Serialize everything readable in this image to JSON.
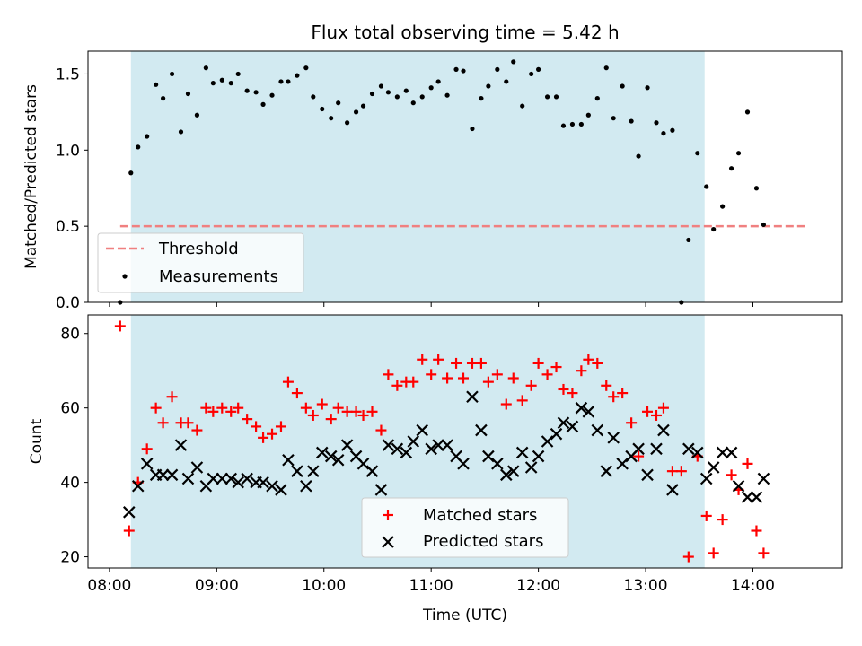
{
  "chart_data": [
    {
      "type": "scatter",
      "title": "Flux total observing time = 5.42 h",
      "xlabel": "",
      "ylabel": "Matched/Predicted stars",
      "ylim": [
        0,
        1.65
      ],
      "xlim": [
        "07:48",
        "14:50"
      ],
      "yticks": [
        0.0,
        0.5,
        1.0,
        1.5
      ],
      "ytick_labels": [
        "0.0",
        "0.5",
        "1.0",
        "1.5"
      ],
      "shaded_span": [
        "08:12",
        "13:33"
      ],
      "shade_color": "#add8e6",
      "threshold": {
        "name": "Threshold",
        "value": 0.5,
        "x_range": [
          "08:06",
          "14:30"
        ],
        "color": "#f08080"
      },
      "legend": {
        "placement": "lower-left",
        "entries": [
          "Threshold",
          "Measurements"
        ]
      },
      "series": [
        {
          "name": "Measurements",
          "marker": "dot",
          "color": "#000000",
          "points": [
            [
              "08:06",
              0.0
            ],
            [
              "08:12",
              0.85
            ],
            [
              "08:16",
              1.02
            ],
            [
              "08:21",
              1.09
            ],
            [
              "08:26",
              1.43
            ],
            [
              "08:30",
              1.34
            ],
            [
              "08:35",
              1.5
            ],
            [
              "08:40",
              1.12
            ],
            [
              "08:44",
              1.37
            ],
            [
              "08:49",
              1.23
            ],
            [
              "08:54",
              1.54
            ],
            [
              "08:58",
              1.44
            ],
            [
              "09:03",
              1.46
            ],
            [
              "09:08",
              1.44
            ],
            [
              "09:12",
              1.5
            ],
            [
              "09:17",
              1.39
            ],
            [
              "09:22",
              1.38
            ],
            [
              "09:26",
              1.3
            ],
            [
              "09:31",
              1.36
            ],
            [
              "09:36",
              1.45
            ],
            [
              "09:40",
              1.45
            ],
            [
              "09:45",
              1.49
            ],
            [
              "09:50",
              1.54
            ],
            [
              "09:54",
              1.35
            ],
            [
              "09:59",
              1.27
            ],
            [
              "10:04",
              1.21
            ],
            [
              "10:08",
              1.31
            ],
            [
              "10:13",
              1.18
            ],
            [
              "10:18",
              1.25
            ],
            [
              "10:22",
              1.29
            ],
            [
              "10:27",
              1.37
            ],
            [
              "10:32",
              1.42
            ],
            [
              "10:36",
              1.38
            ],
            [
              "10:41",
              1.35
            ],
            [
              "10:46",
              1.39
            ],
            [
              "10:50",
              1.31
            ],
            [
              "10:55",
              1.35
            ],
            [
              "11:00",
              1.41
            ],
            [
              "11:04",
              1.45
            ],
            [
              "11:09",
              1.36
            ],
            [
              "11:14",
              1.53
            ],
            [
              "11:18",
              1.52
            ],
            [
              "11:23",
              1.14
            ],
            [
              "11:28",
              1.34
            ],
            [
              "11:32",
              1.42
            ],
            [
              "11:37",
              1.53
            ],
            [
              "11:42",
              1.45
            ],
            [
              "11:46",
              1.58
            ],
            [
              "11:51",
              1.29
            ],
            [
              "11:56",
              1.5
            ],
            [
              "12:00",
              1.53
            ],
            [
              "12:05",
              1.35
            ],
            [
              "12:10",
              1.35
            ],
            [
              "12:14",
              1.16
            ],
            [
              "12:19",
              1.17
            ],
            [
              "12:24",
              1.17
            ],
            [
              "12:28",
              1.23
            ],
            [
              "12:33",
              1.34
            ],
            [
              "12:38",
              1.54
            ],
            [
              "12:42",
              1.21
            ],
            [
              "12:47",
              1.42
            ],
            [
              "12:52",
              1.19
            ],
            [
              "12:56",
              0.96
            ],
            [
              "13:01",
              1.41
            ],
            [
              "13:06",
              1.18
            ],
            [
              "13:10",
              1.11
            ],
            [
              "13:15",
              1.13
            ],
            [
              "13:20",
              0.0
            ],
            [
              "13:24",
              0.41
            ],
            [
              "13:29",
              0.98
            ],
            [
              "13:34",
              0.76
            ],
            [
              "13:38",
              0.48
            ],
            [
              "13:43",
              0.63
            ],
            [
              "13:48",
              0.88
            ],
            [
              "13:52",
              0.98
            ],
            [
              "13:57",
              1.25
            ],
            [
              "14:02",
              0.75
            ],
            [
              "14:06",
              0.51
            ]
          ]
        }
      ]
    },
    {
      "type": "scatter",
      "title": "",
      "xlabel": "Time (UTC)",
      "ylabel": "Count",
      "ylim": [
        17,
        85
      ],
      "xlim": [
        "07:48",
        "14:50"
      ],
      "xticks": [
        "08:00",
        "09:00",
        "10:00",
        "11:00",
        "12:00",
        "13:00",
        "14:00"
      ],
      "xtick_labels": [
        "08:00",
        "09:00",
        "10:00",
        "11:00",
        "12:00",
        "13:00",
        "14:00"
      ],
      "yticks": [
        20,
        40,
        60,
        80
      ],
      "ytick_labels": [
        "20",
        "40",
        "60",
        "80"
      ],
      "shaded_span": [
        "08:12",
        "13:33"
      ],
      "shade_color": "#add8e6",
      "legend": {
        "placement": "lower-center",
        "entries": [
          "Matched stars",
          "Predicted stars"
        ]
      },
      "series": [
        {
          "name": "Matched stars",
          "marker": "plus",
          "color": "#ff0000",
          "points": [
            [
              "08:06",
              82
            ],
            [
              "08:11",
              27
            ],
            [
              "08:16",
              40
            ],
            [
              "08:21",
              49
            ],
            [
              "08:26",
              60
            ],
            [
              "08:30",
              56
            ],
            [
              "08:35",
              63
            ],
            [
              "08:40",
              56
            ],
            [
              "08:44",
              56
            ],
            [
              "08:49",
              54
            ],
            [
              "08:54",
              60
            ],
            [
              "08:58",
              59
            ],
            [
              "09:03",
              60
            ],
            [
              "09:08",
              59
            ],
            [
              "09:12",
              60
            ],
            [
              "09:17",
              57
            ],
            [
              "09:22",
              55
            ],
            [
              "09:26",
              52
            ],
            [
              "09:31",
              53
            ],
            [
              "09:36",
              55
            ],
            [
              "09:40",
              67
            ],
            [
              "09:45",
              64
            ],
            [
              "09:50",
              60
            ],
            [
              "09:54",
              58
            ],
            [
              "09:59",
              61
            ],
            [
              "10:04",
              57
            ],
            [
              "10:08",
              60
            ],
            [
              "10:13",
              59
            ],
            [
              "10:18",
              59
            ],
            [
              "10:22",
              58
            ],
            [
              "10:27",
              59
            ],
            [
              "10:32",
              54
            ],
            [
              "10:36",
              69
            ],
            [
              "10:41",
              66
            ],
            [
              "10:46",
              67
            ],
            [
              "10:50",
              67
            ],
            [
              "10:55",
              73
            ],
            [
              "11:00",
              69
            ],
            [
              "11:04",
              73
            ],
            [
              "11:09",
              68
            ],
            [
              "11:14",
              72
            ],
            [
              "11:18",
              68
            ],
            [
              "11:23",
              72
            ],
            [
              "11:28",
              72
            ],
            [
              "11:32",
              67
            ],
            [
              "11:37",
              69
            ],
            [
              "11:42",
              61
            ],
            [
              "11:46",
              68
            ],
            [
              "11:51",
              62
            ],
            [
              "11:56",
              66
            ],
            [
              "12:00",
              72
            ],
            [
              "12:05",
              69
            ],
            [
              "12:10",
              71
            ],
            [
              "12:14",
              65
            ],
            [
              "12:19",
              64
            ],
            [
              "12:24",
              70
            ],
            [
              "12:28",
              73
            ],
            [
              "12:33",
              72
            ],
            [
              "12:38",
              66
            ],
            [
              "12:42",
              63
            ],
            [
              "12:47",
              64
            ],
            [
              "12:52",
              56
            ],
            [
              "12:56",
              47
            ],
            [
              "13:01",
              59
            ],
            [
              "13:06",
              58
            ],
            [
              "13:10",
              60
            ],
            [
              "13:15",
              43
            ],
            [
              "13:20",
              43
            ],
            [
              "13:24",
              20
            ],
            [
              "13:29",
              47
            ],
            [
              "13:34",
              31
            ],
            [
              "13:38",
              21
            ],
            [
              "13:43",
              30
            ],
            [
              "13:48",
              42
            ],
            [
              "13:52",
              38
            ],
            [
              "13:57",
              45
            ],
            [
              "14:02",
              27
            ],
            [
              "14:06",
              21
            ]
          ]
        },
        {
          "name": "Predicted stars",
          "marker": "x",
          "color": "#000000",
          "points": [
            [
              "08:11",
              32
            ],
            [
              "08:16",
              39
            ],
            [
              "08:21",
              45
            ],
            [
              "08:26",
              42
            ],
            [
              "08:30",
              42
            ],
            [
              "08:35",
              42
            ],
            [
              "08:40",
              50
            ],
            [
              "08:44",
              41
            ],
            [
              "08:49",
              44
            ],
            [
              "08:54",
              39
            ],
            [
              "08:58",
              41
            ],
            [
              "09:03",
              41
            ],
            [
              "09:08",
              41
            ],
            [
              "09:12",
              40
            ],
            [
              "09:17",
              41
            ],
            [
              "09:22",
              40
            ],
            [
              "09:26",
              40
            ],
            [
              "09:31",
              39
            ],
            [
              "09:36",
              38
            ],
            [
              "09:40",
              46
            ],
            [
              "09:45",
              43
            ],
            [
              "09:50",
              39
            ],
            [
              "09:54",
              43
            ],
            [
              "09:59",
              48
            ],
            [
              "10:04",
              47
            ],
            [
              "10:08",
              46
            ],
            [
              "10:13",
              50
            ],
            [
              "10:18",
              47
            ],
            [
              "10:22",
              45
            ],
            [
              "10:27",
              43
            ],
            [
              "10:32",
              38
            ],
            [
              "10:36",
              50
            ],
            [
              "10:41",
              49
            ],
            [
              "10:46",
              48
            ],
            [
              "10:50",
              51
            ],
            [
              "10:55",
              54
            ],
            [
              "11:00",
              49
            ],
            [
              "11:04",
              50
            ],
            [
              "11:09",
              50
            ],
            [
              "11:14",
              47
            ],
            [
              "11:18",
              45
            ],
            [
              "11:23",
              63
            ],
            [
              "11:28",
              54
            ],
            [
              "11:32",
              47
            ],
            [
              "11:37",
              45
            ],
            [
              "11:42",
              42
            ],
            [
              "11:46",
              43
            ],
            [
              "11:51",
              48
            ],
            [
              "11:56",
              44
            ],
            [
              "12:00",
              47
            ],
            [
              "12:05",
              51
            ],
            [
              "12:10",
              53
            ],
            [
              "12:14",
              56
            ],
            [
              "12:19",
              55
            ],
            [
              "12:24",
              60
            ],
            [
              "12:28",
              59
            ],
            [
              "12:33",
              54
            ],
            [
              "12:38",
              43
            ],
            [
              "12:42",
              52
            ],
            [
              "12:47",
              45
            ],
            [
              "12:52",
              47
            ],
            [
              "12:56",
              49
            ],
            [
              "13:01",
              42
            ],
            [
              "13:06",
              49
            ],
            [
              "13:10",
              54
            ],
            [
              "13:15",
              38
            ],
            [
              "13:24",
              49
            ],
            [
              "13:29",
              48
            ],
            [
              "13:34",
              41
            ],
            [
              "13:38",
              44
            ],
            [
              "13:43",
              48
            ],
            [
              "13:48",
              48
            ],
            [
              "13:52",
              39
            ],
            [
              "13:57",
              36
            ],
            [
              "14:02",
              36
            ],
            [
              "14:06",
              41
            ]
          ]
        }
      ]
    }
  ]
}
